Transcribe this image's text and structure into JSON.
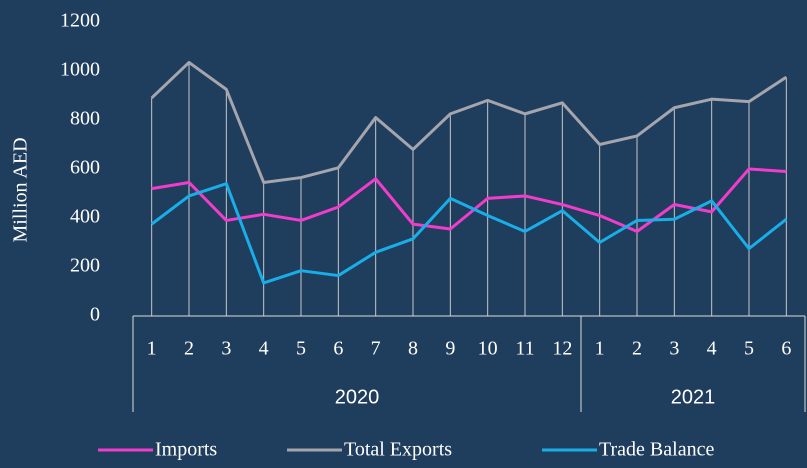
{
  "chart_data": {
    "type": "line",
    "y_label": "Million  AED",
    "category_groups": [
      {
        "name": "2020",
        "categories": [
          "1",
          "2",
          "3",
          "4",
          "5",
          "6",
          "7",
          "8",
          "9",
          "10",
          "11",
          "12"
        ]
      },
      {
        "name": "2021",
        "categories": [
          "1",
          "2",
          "3",
          "4",
          "5",
          "6"
        ]
      }
    ],
    "series": [
      {
        "name": "Imports",
        "color": "#f23ccb",
        "values": [
          520,
          545,
          390,
          415,
          390,
          445,
          560,
          375,
          355,
          480,
          490,
          455,
          410,
          345,
          455,
          425,
          600,
          590
        ]
      },
      {
        "name": "Total Exports",
        "color": "#a5a5ae",
        "values": [
          890,
          1035,
          925,
          545,
          565,
          605,
          810,
          680,
          825,
          880,
          825,
          870,
          700,
          735,
          850,
          885,
          875,
          975
        ]
      },
      {
        "name": "Trade Balance",
        "color": "#19aee8",
        "values": [
          375,
          490,
          540,
          135,
          185,
          165,
          260,
          315,
          480,
          410,
          345,
          430,
          300,
          390,
          395,
          470,
          275,
          395
        ]
      }
    ],
    "ylim": [
      0,
      1200
    ],
    "yticks": [
      0,
      200,
      400,
      600,
      800,
      1000,
      1200
    ],
    "drop_lines": true,
    "legend": "bottom"
  }
}
